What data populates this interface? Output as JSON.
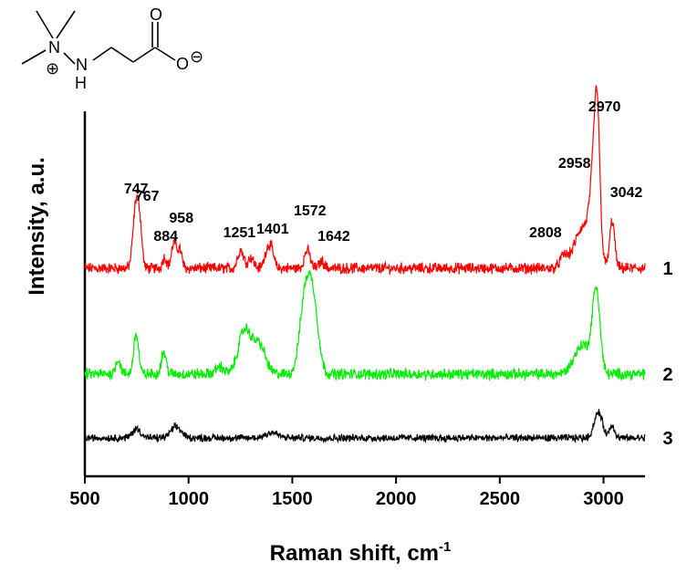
{
  "chart_data": {
    "type": "line",
    "title": "",
    "xlabel": "Raman shift, cm",
    "xlabel_superscript": "-1",
    "ylabel": "Intensity, a.u.",
    "xlim": [
      500,
      3200
    ],
    "ylim": [
      0,
      1
    ],
    "x_ticks": [
      500,
      1000,
      1500,
      2000,
      2500,
      3000
    ],
    "x_tick_labels": [
      "500",
      "1000",
      "1500",
      "2000",
      "2500",
      "3000"
    ],
    "grid": false,
    "series": [
      {
        "name": "1",
        "color": "#ff0000",
        "baseline": 0.57,
        "noise": 0.012,
        "peaks": [
          {
            "x": 747,
            "h": 0.18,
            "w": 14
          },
          {
            "x": 767,
            "h": 0.08,
            "w": 10
          },
          {
            "x": 884,
            "h": 0.03,
            "w": 10
          },
          {
            "x": 930,
            "h": 0.07,
            "w": 12
          },
          {
            "x": 958,
            "h": 0.05,
            "w": 10
          },
          {
            "x": 1251,
            "h": 0.05,
            "w": 14
          },
          {
            "x": 1300,
            "h": 0.03,
            "w": 14
          },
          {
            "x": 1380,
            "h": 0.05,
            "w": 14
          },
          {
            "x": 1401,
            "h": 0.04,
            "w": 12
          },
          {
            "x": 1572,
            "h": 0.05,
            "w": 14
          },
          {
            "x": 1642,
            "h": 0.02,
            "w": 12
          },
          {
            "x": 2808,
            "h": 0.03,
            "w": 18
          },
          {
            "x": 2900,
            "h": 0.11,
            "w": 40
          },
          {
            "x": 2958,
            "h": 0.26,
            "w": 20
          },
          {
            "x": 2970,
            "h": 0.24,
            "w": 12
          },
          {
            "x": 3042,
            "h": 0.13,
            "w": 12
          }
        ]
      },
      {
        "name": "2",
        "color": "#00ee00",
        "baseline": 0.28,
        "noise": 0.012,
        "peaks": [
          {
            "x": 660,
            "h": 0.04,
            "w": 12
          },
          {
            "x": 747,
            "h": 0.11,
            "w": 12
          },
          {
            "x": 880,
            "h": 0.06,
            "w": 12
          },
          {
            "x": 1150,
            "h": 0.02,
            "w": 20
          },
          {
            "x": 1270,
            "h": 0.12,
            "w": 30
          },
          {
            "x": 1340,
            "h": 0.08,
            "w": 30
          },
          {
            "x": 1560,
            "h": 0.19,
            "w": 25
          },
          {
            "x": 1600,
            "h": 0.19,
            "w": 25
          },
          {
            "x": 2900,
            "h": 0.08,
            "w": 40
          },
          {
            "x": 2965,
            "h": 0.22,
            "w": 18
          }
        ]
      },
      {
        "name": "3",
        "color": "#000000",
        "baseline": 0.105,
        "noise": 0.008,
        "peaks": [
          {
            "x": 750,
            "h": 0.025,
            "w": 20
          },
          {
            "x": 940,
            "h": 0.03,
            "w": 25
          },
          {
            "x": 1400,
            "h": 0.015,
            "w": 30
          },
          {
            "x": 2975,
            "h": 0.07,
            "w": 20
          },
          {
            "x": 3042,
            "h": 0.035,
            "w": 12
          }
        ]
      }
    ],
    "annotations": [
      {
        "text": "747",
        "x": 747,
        "y": 0.775
      },
      {
        "text": "767",
        "x": 800,
        "y": 0.755
      },
      {
        "text": "884",
        "x": 890,
        "y": 0.645
      },
      {
        "text": "958",
        "x": 965,
        "y": 0.695
      },
      {
        "text": "1251",
        "x": 1245,
        "y": 0.655
      },
      {
        "text": "1401",
        "x": 1405,
        "y": 0.665
      },
      {
        "text": "1572",
        "x": 1585,
        "y": 0.715
      },
      {
        "text": "1642",
        "x": 1700,
        "y": 0.645
      },
      {
        "text": "2808",
        "x": 2720,
        "y": 0.655
      },
      {
        "text": "2958",
        "x": 2860,
        "y": 0.845
      },
      {
        "text": "2970",
        "x": 3005,
        "y": 1.0
      },
      {
        "text": "3042",
        "x": 3110,
        "y": 0.765
      }
    ],
    "series_labels": [
      {
        "text": "1",
        "y": 0.57
      },
      {
        "text": "2",
        "y": 0.28
      },
      {
        "text": "3",
        "y": 0.105
      }
    ]
  },
  "structure": {
    "atoms": {
      "N_plus": "N",
      "charge_plus": "⊕",
      "N_h": "N",
      "H": "H",
      "O_top": "O",
      "O_minus": "O",
      "charge_minus": "⊖"
    }
  }
}
